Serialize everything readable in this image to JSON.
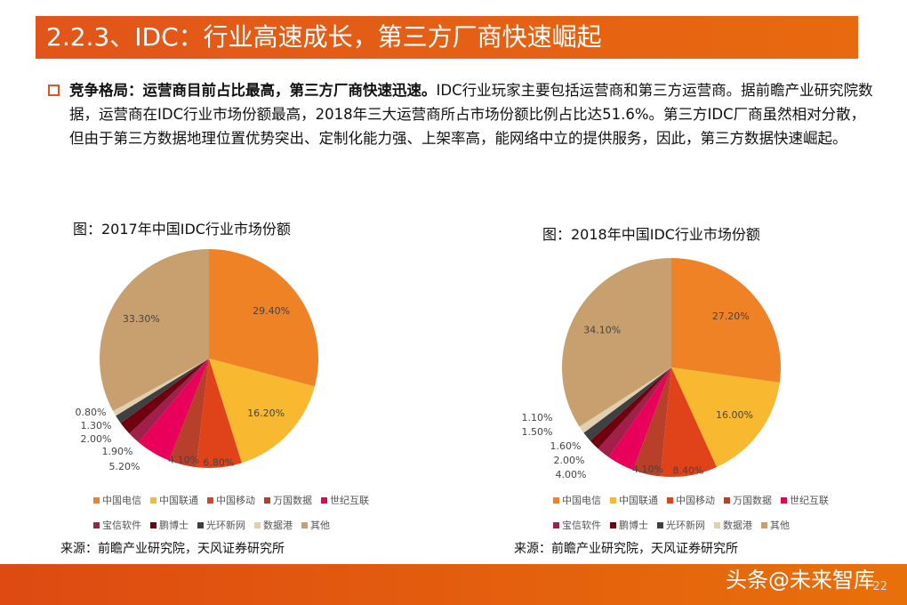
{
  "title": "2.2.3、IDC：行业高速成长，第三方厂商快速崛起",
  "paragraph": {
    "bold": "竞争格局：运营商目前占比最高，第三方厂商快速迅速。",
    "text": "IDC行业玩家主要包括运营商和第三方运营商。据前瞻产业研究院数据，运营商在IDC行业市场份额最高，2018年三大运营商所占市场份额比例占比达51.6%。第三方IDC厂商虽然相对分散，但由于第三方数据地理位置优势突出、定制化能力强、上架率高，能网络中立的提供服务，因此，第三方数据快速崛起。"
  },
  "source": "来源：前瞻产业研究院，天风证券研究所",
  "watermark": "头条@未来智库",
  "page_number": "22",
  "chart_data": [
    {
      "type": "pie",
      "title": "图：2017年中国IDC行业市场份额",
      "categories": [
        "中国电信",
        "中国联通",
        "中国移动",
        "万国数据",
        "世纪互联",
        "宝信软件",
        "鹏博士",
        "光环新网",
        "数据港",
        "其他"
      ],
      "values": [
        29.4,
        16.2,
        6.8,
        4.1,
        5.2,
        1.9,
        2.0,
        1.3,
        0.8,
        33.3
      ],
      "labels": [
        "29.40%",
        "16.20%",
        "6.80%",
        "4.10%",
        "5.20%",
        "1.90%",
        "2.00%",
        "1.30%",
        "0.80%",
        "33.30%"
      ]
    },
    {
      "type": "pie",
      "title": "图：2018年中国IDC行业市场份额",
      "categories": [
        "中国电信",
        "中国联通",
        "中国移动",
        "万国数据",
        "世纪互联",
        "宝信软件",
        "鹏博士",
        "光环新网",
        "数据港",
        "其他"
      ],
      "values": [
        27.2,
        16.0,
        8.4,
        4.1,
        4.0,
        2.0,
        1.6,
        1.5,
        1.1,
        34.1
      ],
      "labels": [
        "27.20%",
        "16.00%",
        "8.40%",
        "4.10%",
        "4.00%",
        "2.00%",
        "1.60%",
        "1.50%",
        "1.10%",
        "34.10%"
      ]
    }
  ],
  "colors": [
    "#f08226",
    "#f8b830",
    "#e0421a",
    "#b8402a",
    "#e8005a",
    "#a0204a",
    "#700010",
    "#404040",
    "#e0d0b0",
    "#c8a070"
  ]
}
